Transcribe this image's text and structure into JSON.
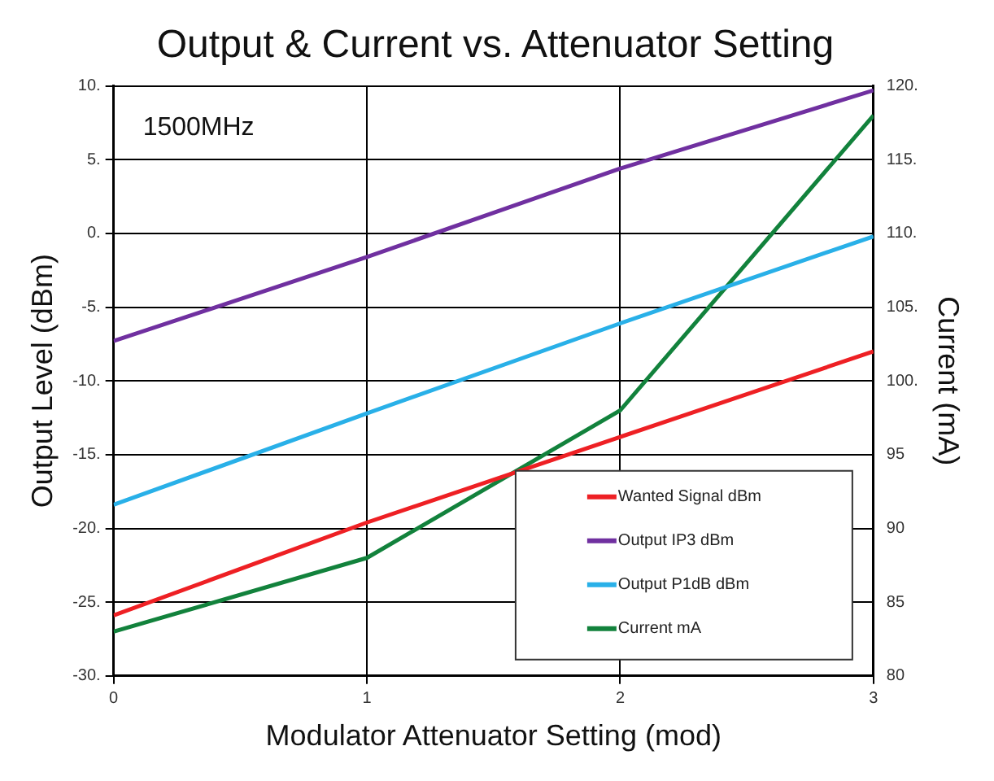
{
  "chart_data": {
    "type": "line",
    "title": "Output & Current vs. Attenuator Setting",
    "xlabel": "Modulator Attenuator Setting (mod)",
    "ylabel": "Output Level (dBm)",
    "y2label": "Current (mA)",
    "annotations": [
      "1500MHz"
    ],
    "x": [
      0,
      1,
      2,
      3
    ],
    "xlim": [
      0,
      3
    ],
    "xticks": [
      0,
      1,
      2,
      3
    ],
    "ylim": [
      -30,
      10
    ],
    "yticks": [
      {
        "value": -30,
        "label": "-30."
      },
      {
        "value": -25,
        "label": "-25."
      },
      {
        "value": -20,
        "label": "-20."
      },
      {
        "value": -15,
        "label": "-15."
      },
      {
        "value": -10,
        "label": "-10."
      },
      {
        "value": -5,
        "label": "-5."
      },
      {
        "value": 0,
        "label": "0."
      },
      {
        "value": 5,
        "label": "5."
      },
      {
        "value": 10,
        "label": "10."
      }
    ],
    "y2lim": [
      80,
      120
    ],
    "y2ticks": [
      80,
      85,
      90,
      95,
      {
        "value": 100,
        "label": "100."
      },
      {
        "value": 105,
        "label": "105."
      },
      {
        "value": 110,
        "label": "110."
      },
      {
        "value": 115,
        "label": "115."
      },
      {
        "value": 120,
        "label": "120."
      }
    ],
    "series": [
      {
        "name": "Wanted Signal dBm",
        "color": "#ee2024",
        "values": [
          -25.9,
          -19.6,
          -13.8,
          -8
        ]
      },
      {
        "name": "Output IP3 dBm",
        "color": "#7030a0",
        "values": [
          -7.3,
          -1.6,
          4.4,
          9.7
        ]
      },
      {
        "name": "Output P1dB dBm",
        "color": "#29b0e8",
        "values": [
          -18.4,
          -12.2,
          -6.1,
          -0.2
        ]
      },
      {
        "name": "Current mA",
        "color": "#12823c",
        "axis": "y2",
        "values": [
          83,
          88,
          98,
          118
        ]
      }
    ],
    "grid": true,
    "legend": "bottom right",
    "marker": "none",
    "line_style": "solid"
  }
}
